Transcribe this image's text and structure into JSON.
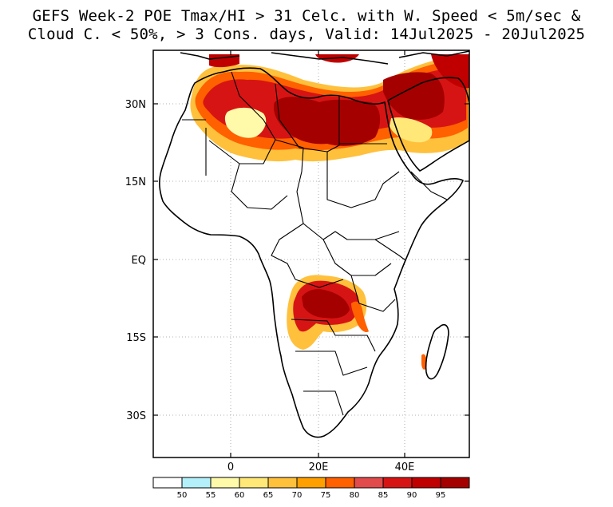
{
  "title": {
    "line1": "GEFS Week-2 POE Tmax/HI > 31 Celc. with W. Speed < 5m/sec &",
    "line2": "Cloud C. < 50%, > 3 Cons. days, Valid: 14Jul2025 - 20Jul2025"
  },
  "axes": {
    "lat_labels": [
      "30N",
      "15N",
      "EQ",
      "15S",
      "30S"
    ],
    "lon_labels": [
      "0",
      "20E",
      "40E"
    ]
  },
  "colorbar": {
    "ticks": [
      "50",
      "55",
      "60",
      "65",
      "70",
      "75",
      "80",
      "85",
      "90",
      "95"
    ],
    "colors": [
      "#ffffff",
      "#b4f0fa",
      "#fffaaa",
      "#ffe878",
      "#ffc03c",
      "#ffa000",
      "#ff6000",
      "#e14b4b",
      "#d71414",
      "#c00000",
      "#a50000"
    ]
  }
}
